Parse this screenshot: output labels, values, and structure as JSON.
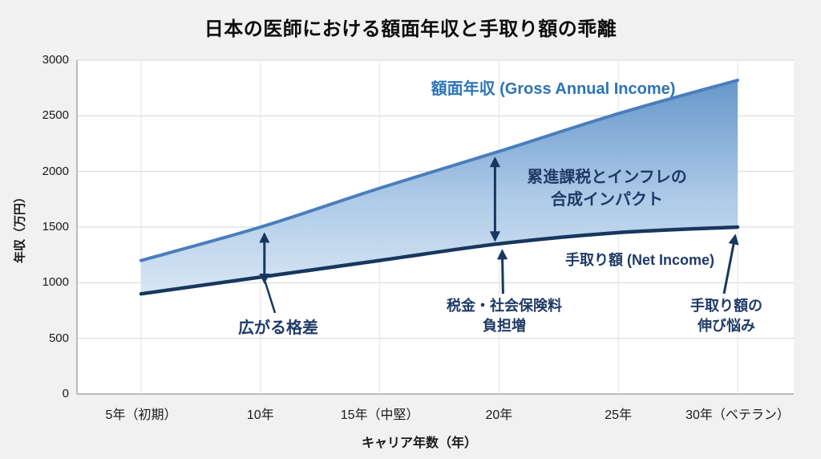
{
  "chart_data": {
    "type": "area",
    "title": "日本の医師における額面年収と手取り額の乖離",
    "xlabel": "キャリア年数（年）",
    "ylabel": "年収（万円）",
    "x_tick_labels": [
      "5年（初期）",
      "10年",
      "15年（中堅）",
      "20年",
      "25年",
      "30年（ベテラン）"
    ],
    "y_ticks": [
      0,
      500,
      1000,
      1500,
      2000,
      2500,
      3000
    ],
    "ylim": [
      0,
      3000
    ],
    "grid": true,
    "legend_position": "inline-labels",
    "series": [
      {
        "name": "額面年収 (Gross Annual Income)",
        "color": "#4a7ebc",
        "values": [
          1200,
          1500,
          1850,
          2180,
          2520,
          2820
        ]
      },
      {
        "name": "手取り額 (Net Income)",
        "color": "#17375e",
        "values": [
          900,
          1050,
          1200,
          1350,
          1450,
          1500
        ]
      }
    ],
    "fill_between": {
      "upper_series": 0,
      "lower_series": 1,
      "gradient": [
        "#5b90c7",
        "#a9c7e6",
        "#eef5fc"
      ]
    },
    "annotations": {
      "gross_label": {
        "text": "額面年収 (Gross Annual Income)",
        "color": "#2e74b5"
      },
      "net_label": {
        "text": "手取り額 (Net Income)",
        "color": "#17375e"
      },
      "gap": {
        "text": "広がる格差",
        "anchor_category_index": 1
      },
      "tax": {
        "line1": "税金・社会保険料",
        "line2": "負担増",
        "anchor_category_index": 3
      },
      "impact": {
        "line1": "累進課税とインフレの",
        "line2": "合成インパクト",
        "anchor_category_index": 3
      },
      "stagnation": {
        "line1": "手取り額の",
        "line2": "伸び悩み",
        "anchor_category_index": 5
      }
    },
    "colors": {
      "arrow": "#17375e",
      "grid_h": "#d6d6d6",
      "grid_v": "#e3e3e3",
      "axis": "#a6a6a6",
      "plot_background": "#ffffff",
      "page_background": "#f1f1f2",
      "annotation_text": "#1f3a66"
    }
  }
}
